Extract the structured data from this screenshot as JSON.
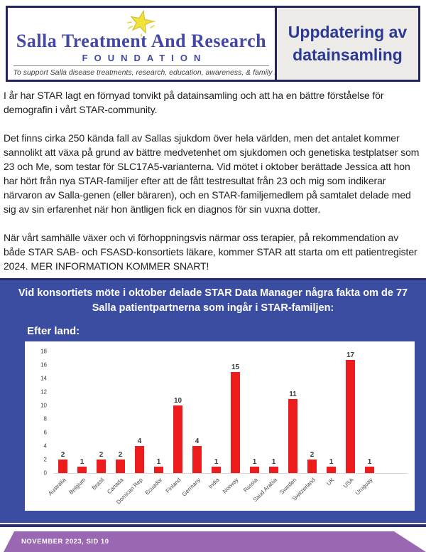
{
  "header": {
    "logo": {
      "title": "Salla Treatment And Research",
      "foundation": "FOUNDATION",
      "tagline": "To support Salla disease treatments, research, education, awareness, & family networks",
      "star_icon": "yellow-star"
    },
    "title": "Uppdatering av datainsamling"
  },
  "body": {
    "paragraphs": [
      "I år har STAR lagt en förnyad tonvikt på datainsamling och att ha en bättre förståelse för demografin i vårt STAR-community.",
      "Det finns cirka 250 kända fall av Sallas sjukdom över hela världen, men det antalet kommer sannolikt att växa på grund av bättre medvetenhet om sjukdomen och genetiska testplatser som 23 och Me, som testar för SLC17A5-varianterna. Vid mötet i oktober berättade Jessica att hon har hört från nya STAR-familjer efter att de fått testresultat från 23 och mig som indikerar närvaron av Salla-genen (eller bäraren), och en STAR-familjemedlem på samtalet delade med sig av sin erfarenhet när hon äntligen fick en diagnos för sin vuxna dotter.",
      "När vårt samhälle växer och vi förhoppningsvis närmar oss terapier, på rekommendation av både STAR SAB- och FSASD-konsortiets läkare, kommer STAR att starta om ett patientregister 2024. MER INFORMATION KOMMER SNART!"
    ]
  },
  "banner": {
    "line1": "Vid konsortiets möte i oktober delade STAR Data Manager några fakta om de 77",
    "line2": "Salla patientpartnerna som ingår i STAR-familjen:"
  },
  "chart_data": {
    "type": "bar",
    "title": "Efter land:",
    "categories": [
      "Australia",
      "Belgium",
      "Brasil",
      "Canada",
      "Domican Rep",
      "Ecuador",
      "Finland",
      "Germany",
      "India",
      "Norway",
      "Russia",
      "Saud Arabia",
      "Sweden",
      "Switzerland",
      "UK",
      "USA",
      "Uruguay"
    ],
    "values": [
      2,
      1,
      2,
      2,
      4,
      1,
      10,
      4,
      1,
      15,
      1,
      1,
      11,
      2,
      1,
      17,
      1
    ],
    "xlabel": "",
    "ylabel": "",
    "ylim": [
      0,
      18
    ],
    "ytick_step": 2,
    "grid": false,
    "legend": false,
    "bar_color": "#ec1c1c"
  },
  "footer": {
    "text": "NOVEMBER 2023, SID 10"
  },
  "colors": {
    "section_blue": "#3b4da1",
    "navy_border": "#23255c",
    "title_blue": "#2c3a96",
    "logo_blue": "#4347a5",
    "bar_red": "#ec1c1c",
    "footer_purple": "#9a68b2",
    "title_box_bg": "#ecebe8"
  }
}
